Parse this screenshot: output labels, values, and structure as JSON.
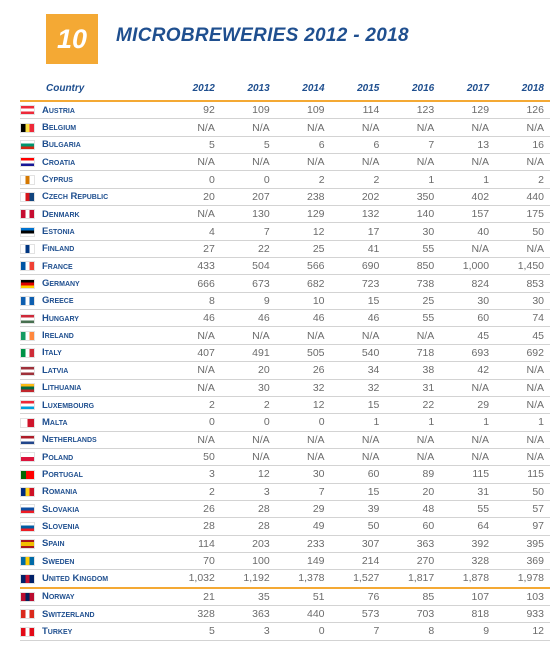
{
  "header": {
    "number": "10",
    "title": "MICROBREWERIES 2012 - 2018"
  },
  "columns": [
    "Country",
    "2012",
    "2013",
    "2014",
    "2015",
    "2016",
    "2017",
    "2018"
  ],
  "rows": [
    {
      "country": "Austria",
      "flag": "austria-flag",
      "values": [
        "92",
        "109",
        "109",
        "114",
        "123",
        "129",
        "126"
      ]
    },
    {
      "country": "Belgium",
      "flag": "belgium-flag",
      "values": [
        "N/A",
        "N/A",
        "N/A",
        "N/A",
        "N/A",
        "N/A",
        "N/A"
      ]
    },
    {
      "country": "Bulgaria",
      "flag": "bulgaria-flag",
      "values": [
        "5",
        "5",
        "6",
        "6",
        "7",
        "13",
        "16"
      ]
    },
    {
      "country": "Croatia",
      "flag": "croatia-flag",
      "values": [
        "N/A",
        "N/A",
        "N/A",
        "N/A",
        "N/A",
        "N/A",
        "N/A"
      ]
    },
    {
      "country": "Cyprus",
      "flag": "cyprus-flag",
      "values": [
        "0",
        "0",
        "2",
        "2",
        "1",
        "1",
        "2"
      ]
    },
    {
      "country": "Czech Republic",
      "flag": "czech-republic-flag",
      "values": [
        "20",
        "207",
        "238",
        "202",
        "350",
        "402",
        "440"
      ]
    },
    {
      "country": "Denmark",
      "flag": "denmark-flag",
      "values": [
        "N/A",
        "130",
        "129",
        "132",
        "140",
        "157",
        "175"
      ]
    },
    {
      "country": "Estonia",
      "flag": "estonia-flag",
      "values": [
        "4",
        "7",
        "12",
        "17",
        "30",
        "40",
        "50"
      ]
    },
    {
      "country": "Finland",
      "flag": "finland-flag",
      "values": [
        "27",
        "22",
        "25",
        "41",
        "55",
        "N/A",
        "N/A"
      ]
    },
    {
      "country": "France",
      "flag": "france-flag",
      "values": [
        "433",
        "504",
        "566",
        "690",
        "850",
        "1,000",
        "1,450"
      ]
    },
    {
      "country": "Germany",
      "flag": "germany-flag",
      "values": [
        "666",
        "673",
        "682",
        "723",
        "738",
        "824",
        "853"
      ]
    },
    {
      "country": "Greece",
      "flag": "greece-flag",
      "values": [
        "8",
        "9",
        "10",
        "15",
        "25",
        "30",
        "30"
      ]
    },
    {
      "country": "Hungary",
      "flag": "hungary-flag",
      "values": [
        "46",
        "46",
        "46",
        "46",
        "55",
        "60",
        "74"
      ]
    },
    {
      "country": "Ireland",
      "flag": "ireland-flag",
      "values": [
        "N/A",
        "N/A",
        "N/A",
        "N/A",
        "N/A",
        "45",
        "45"
      ]
    },
    {
      "country": "Italy",
      "flag": "italy-flag",
      "values": [
        "407",
        "491",
        "505",
        "540",
        "718",
        "693",
        "692"
      ]
    },
    {
      "country": "Latvia",
      "flag": "latvia-flag",
      "values": [
        "N/A",
        "20",
        "26",
        "34",
        "38",
        "42",
        "N/A"
      ]
    },
    {
      "country": "Lithuania",
      "flag": "lithuania-flag",
      "values": [
        "N/A",
        "30",
        "32",
        "32",
        "31",
        "N/A",
        "N/A"
      ]
    },
    {
      "country": "Luxembourg",
      "flag": "luxembourg-flag",
      "values": [
        "2",
        "2",
        "12",
        "15",
        "22",
        "29",
        "N/A"
      ]
    },
    {
      "country": "Malta",
      "flag": "malta-flag",
      "values": [
        "0",
        "0",
        "0",
        "1",
        "1",
        "1",
        "1"
      ]
    },
    {
      "country": "Netherlands",
      "flag": "netherlands-flag",
      "values": [
        "N/A",
        "N/A",
        "N/A",
        "N/A",
        "N/A",
        "N/A",
        "N/A"
      ]
    },
    {
      "country": "Poland",
      "flag": "poland-flag",
      "values": [
        "50",
        "N/A",
        "N/A",
        "N/A",
        "N/A",
        "N/A",
        "N/A"
      ]
    },
    {
      "country": "Portugal",
      "flag": "portugal-flag",
      "values": [
        "3",
        "12",
        "30",
        "60",
        "89",
        "115",
        "115"
      ]
    },
    {
      "country": "Romania",
      "flag": "romania-flag",
      "values": [
        "2",
        "3",
        "7",
        "15",
        "20",
        "31",
        "50"
      ]
    },
    {
      "country": "Slovakia",
      "flag": "slovakia-flag",
      "values": [
        "26",
        "28",
        "29",
        "39",
        "48",
        "55",
        "57"
      ]
    },
    {
      "country": "Slovenia",
      "flag": "slovenia-flag",
      "values": [
        "28",
        "28",
        "49",
        "50",
        "60",
        "64",
        "97"
      ]
    },
    {
      "country": "Spain",
      "flag": "spain-flag",
      "values": [
        "114",
        "203",
        "233",
        "307",
        "363",
        "392",
        "395"
      ]
    },
    {
      "country": "Sweden",
      "flag": "sweden-flag",
      "values": [
        "70",
        "100",
        "149",
        "214",
        "270",
        "328",
        "369"
      ]
    },
    {
      "country": "United Kingdom",
      "flag": "united-kingdom-flag",
      "values": [
        "1,032",
        "1,192",
        "1,378",
        "1,527",
        "1,817",
        "1,878",
        "1,978"
      ]
    },
    {
      "country": "Norway",
      "flag": "norway-flag",
      "values": [
        "21",
        "35",
        "51",
        "76",
        "85",
        "107",
        "103"
      ]
    },
    {
      "country": "Switzerland",
      "flag": "switzerland-flag",
      "values": [
        "328",
        "363",
        "440",
        "573",
        "703",
        "818",
        "933"
      ]
    },
    {
      "country": "Turkey",
      "flag": "turkey-flag",
      "values": [
        "5",
        "3",
        "0",
        "7",
        "8",
        "9",
        "12"
      ]
    }
  ],
  "flag_colors": {
    "austria-flag": [
      "#ed2939",
      "#ffffff",
      "#ed2939"
    ],
    "belgium-flag": [
      "#000000",
      "#fae042",
      "#ed2939"
    ],
    "bulgaria-flag": [
      "#ffffff",
      "#00966e",
      "#d62612"
    ],
    "croatia-flag": [
      "#ff0000",
      "#ffffff",
      "#171796"
    ],
    "cyprus-flag": [
      "#ffffff",
      "#d57800",
      "#ffffff"
    ],
    "czech-republic-flag": [
      "#ffffff",
      "#d7141a",
      "#11457e"
    ],
    "denmark-flag": [
      "#c60c30",
      "#ffffff",
      "#c60c30"
    ],
    "estonia-flag": [
      "#0072ce",
      "#000000",
      "#ffffff"
    ],
    "finland-flag": [
      "#ffffff",
      "#003580",
      "#ffffff"
    ],
    "france-flag": [
      "#0055a4",
      "#ffffff",
      "#ef4135"
    ],
    "germany-flag": [
      "#000000",
      "#dd0000",
      "#ffce00"
    ],
    "greece-flag": [
      "#0d5eaf",
      "#ffffff",
      "#0d5eaf"
    ],
    "hungary-flag": [
      "#ce2939",
      "#ffffff",
      "#477050"
    ],
    "ireland-flag": [
      "#169b62",
      "#ffffff",
      "#ff883e"
    ],
    "italy-flag": [
      "#009246",
      "#ffffff",
      "#ce2b37"
    ],
    "latvia-flag": [
      "#9e3039",
      "#ffffff",
      "#9e3039"
    ],
    "lithuania-flag": [
      "#fdb913",
      "#006a44",
      "#c1272d"
    ],
    "luxembourg-flag": [
      "#ed2939",
      "#ffffff",
      "#00a1de"
    ],
    "malta-flag": [
      "#ffffff",
      "#ffffff",
      "#cf142b"
    ],
    "netherlands-flag": [
      "#ae1c28",
      "#ffffff",
      "#21468b"
    ],
    "poland-flag": [
      "#ffffff",
      "#ffffff",
      "#dc143c"
    ],
    "portugal-flag": [
      "#006600",
      "#ff0000",
      "#ff0000"
    ],
    "romania-flag": [
      "#002b7f",
      "#fcd116",
      "#ce1126"
    ],
    "slovakia-flag": [
      "#ffffff",
      "#0b4ea2",
      "#ee1c25"
    ],
    "slovenia-flag": [
      "#ffffff",
      "#005da4",
      "#ed1c24"
    ],
    "spain-flag": [
      "#aa151b",
      "#f1bf00",
      "#aa151b"
    ],
    "sweden-flag": [
      "#006aa7",
      "#fecc00",
      "#006aa7"
    ],
    "united-kingdom-flag": [
      "#012169",
      "#c8102e",
      "#012169"
    ],
    "norway-flag": [
      "#ba0c2f",
      "#00205b",
      "#ba0c2f"
    ],
    "switzerland-flag": [
      "#da291c",
      "#ffffff",
      "#da291c"
    ],
    "turkey-flag": [
      "#e30a17",
      "#ffffff",
      "#e30a17"
    ]
  },
  "colors": {
    "accent": "#f4a934",
    "title": "#1f4f8f",
    "value": "#6b6b6b"
  }
}
